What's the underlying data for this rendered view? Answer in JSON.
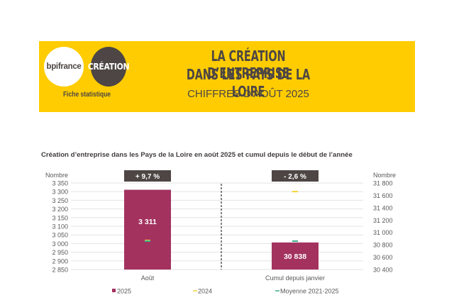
{
  "banner": {
    "logo_left": "bpifrance",
    "logo_right": "CRÉATION",
    "subtitle_left": "Fiche statistique",
    "title_line1": "LA CRÉATION D’ENTREPRISE",
    "title_line2": "DANS LES PAYS DE LA LOIRE",
    "title_line3": "CHIFFRES D'AOÛT 2025"
  },
  "colors": {
    "banner": "#fecc00",
    "dark": "#4d4645",
    "bar_2025": "#a3325f",
    "marker_2024": "#f5d334",
    "marker_moyenne": "#3bab8d"
  },
  "chart_data": {
    "type": "bar",
    "title": "Création d’entreprise dans les Pays de la Loire en août 2025 et cumul depuis le début de l’année",
    "panels": [
      {
        "category": "Août",
        "axis": "left",
        "ylabel": "Nombre",
        "ylim": [
          2850,
          3350
        ],
        "ticks": [
          "3 350",
          "3 300",
          "3 250",
          "3 200",
          "3 150",
          "3 100",
          "3 050",
          "3 000",
          "2 950",
          "2 900",
          "2 850"
        ],
        "tick_values": [
          3350,
          3300,
          3250,
          3200,
          3150,
          3100,
          3050,
          3000,
          2950,
          2900,
          2850
        ],
        "value_2025": 3311,
        "value_2025_label": "3 311",
        "value_2024": 3018,
        "value_moyenne": 3014,
        "change_label": "+ 9,7 %"
      },
      {
        "category": "Cumul depuis janvier",
        "axis": "right",
        "ylabel": "Nombre",
        "ylim": [
          30400,
          31800
        ],
        "ticks": [
          "31 800",
          "31 600",
          "31 400",
          "31 200",
          "31 000",
          "30 800",
          "30 600",
          "30 400"
        ],
        "tick_values": [
          31800,
          31600,
          31400,
          31200,
          31000,
          30800,
          30600,
          30400
        ],
        "value_2025": 30838,
        "value_2025_label": "30 838",
        "value_2024": 31661,
        "value_moyenne": 30860,
        "change_label": "- 2,6 %"
      }
    ],
    "legend": [
      {
        "label": "2025",
        "marker": "square"
      },
      {
        "label": "2024",
        "marker": "dash"
      },
      {
        "label": "Moyenne 2021-2025",
        "marker": "dash"
      }
    ],
    "legend_position": "bottom",
    "grid": true
  }
}
